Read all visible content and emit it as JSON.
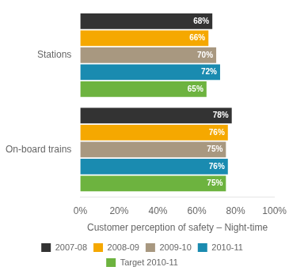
{
  "chart_data": {
    "type": "bar",
    "orientation": "horizontal",
    "xlabel": "Customer perception of safety – Night-time",
    "categories": [
      "Stations",
      "On-board trains"
    ],
    "series": [
      {
        "name": "2007-08",
        "color": "#333333",
        "values": [
          68,
          78
        ],
        "value_labels": [
          "68%",
          "78%"
        ]
      },
      {
        "name": "2008-09",
        "color": "#F5A800",
        "values": [
          66,
          76
        ],
        "value_labels": [
          "66%",
          "76%"
        ]
      },
      {
        "name": "2009-10",
        "color": "#A89880",
        "values": [
          70,
          75
        ],
        "value_labels": [
          "70%",
          "75%"
        ]
      },
      {
        "name": "2010-11",
        "color": "#1A8BB0",
        "values": [
          72,
          76
        ],
        "value_labels": [
          "72%",
          "76%"
        ]
      },
      {
        "name": "Target 2010-11",
        "color": "#6DB33F",
        "values": [
          65,
          75
        ],
        "value_labels": [
          "65%",
          "75%"
        ]
      }
    ],
    "xlim": [
      0,
      100
    ],
    "xticks": [
      {
        "value": 0,
        "label": "0%"
      },
      {
        "value": 20,
        "label": "20%"
      },
      {
        "value": 40,
        "label": "40%"
      },
      {
        "value": 60,
        "label": "60%"
      },
      {
        "value": 80,
        "label": "80%"
      },
      {
        "value": 100,
        "label": "100%"
      }
    ],
    "grid": false,
    "legend": "bottom",
    "data_labels": true
  }
}
